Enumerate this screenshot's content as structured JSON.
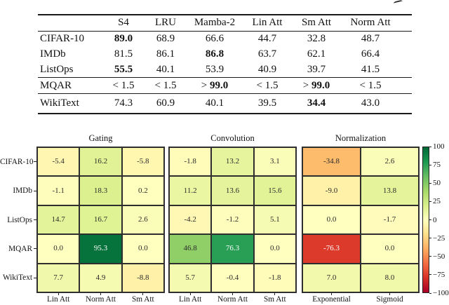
{
  "table": {
    "columns": [
      "S4",
      "LRU",
      "Mamba-2",
      "Lin Att",
      "Sm Att",
      "Norm Att"
    ],
    "sections": [
      {
        "rows": [
          {
            "label": "CIFAR-10",
            "cells": [
              {
                "t": "89.0",
                "b": true
              },
              {
                "t": "68.9"
              },
              {
                "t": "66.6"
              },
              {
                "t": "44.7"
              },
              {
                "t": "32.8"
              },
              {
                "t": "48.7"
              }
            ]
          },
          {
            "label": "IMDb",
            "cells": [
              {
                "t": "81.5"
              },
              {
                "t": "86.1"
              },
              {
                "t": "86.8",
                "b": true
              },
              {
                "t": "63.7"
              },
              {
                "t": "62.1"
              },
              {
                "t": "66.4"
              }
            ]
          },
          {
            "label": "ListOps",
            "cells": [
              {
                "t": "55.5",
                "b": true
              },
              {
                "t": "40.1"
              },
              {
                "t": "53.9"
              },
              {
                "t": "40.9"
              },
              {
                "t": "39.7"
              },
              {
                "t": "41.5"
              }
            ]
          }
        ]
      },
      {
        "rows": [
          {
            "label": "MQAR",
            "cells": [
              {
                "p": "< ",
                "t": "1.5"
              },
              {
                "p": "< ",
                "t": "1.5"
              },
              {
                "p": "> ",
                "t": "99.0",
                "b": true
              },
              {
                "p": "< ",
                "t": "1.5"
              },
              {
                "p": "> ",
                "t": "99.0",
                "b": true
              },
              {
                "p": "< ",
                "t": "1.5"
              }
            ]
          }
        ]
      },
      {
        "rows": [
          {
            "label": "WikiText",
            "cells": [
              {
                "t": "74.3"
              },
              {
                "t": "60.9"
              },
              {
                "t": "40.1"
              },
              {
                "t": "39.5"
              },
              {
                "t": "34.4",
                "b": true
              },
              {
                "t": "43.0"
              }
            ]
          }
        ]
      }
    ]
  },
  "figure": {
    "row_labels": [
      "CIFAR-10",
      "IMDb",
      "ListOps",
      "MQAR",
      "WikiText"
    ],
    "colormap_stops": [
      "#a50026",
      "#d73027",
      "#f46d43",
      "#fdae61",
      "#fee08b",
      "#ffffbf",
      "#d9ef8b",
      "#a6d96a",
      "#66bd63",
      "#1a9850",
      "#006837"
    ],
    "colorbar": {
      "tick_labels": [
        "100",
        "75",
        "50",
        "25",
        "0",
        "−25",
        "−50",
        "−75",
        "−100"
      ],
      "vmin": -100,
      "vmax": 100
    }
  },
  "chart_data": [
    {
      "type": "heatmap",
      "title": "Gating",
      "x": [
        "Lin Att",
        "Norm Att",
        "Sm Att"
      ],
      "y": [
        "CIFAR-10",
        "IMDb",
        "ListOps",
        "MQAR",
        "WikiText"
      ],
      "values": [
        [
          -5.4,
          16.2,
          -5.8
        ],
        [
          -1.1,
          18.3,
          0.2
        ],
        [
          14.7,
          16.7,
          2.6
        ],
        [
          0.0,
          95.3,
          0.0
        ],
        [
          7.7,
          4.9,
          -8.8
        ]
      ],
      "vmin": -100,
      "vmax": 100,
      "colormap": "RdYlGn"
    },
    {
      "type": "heatmap",
      "title": "Convolution",
      "x": [
        "Lin Att",
        "Norm Att",
        "Sm Att"
      ],
      "y": [
        "CIFAR-10",
        "IMDb",
        "ListOps",
        "MQAR",
        "WikiText"
      ],
      "values": [
        [
          -1.8,
          13.2,
          3.1
        ],
        [
          11.2,
          13.6,
          15.6
        ],
        [
          -4.2,
          -1.2,
          5.1
        ],
        [
          46.8,
          76.3,
          0.0
        ],
        [
          5.7,
          -0.4,
          -1.8
        ]
      ],
      "vmin": -100,
      "vmax": 100,
      "colormap": "RdYlGn"
    },
    {
      "type": "heatmap",
      "title": "Normalization",
      "x": [
        "Exponential",
        "Sigmoid"
      ],
      "y": [
        "CIFAR-10",
        "IMDb",
        "ListOps",
        "MQAR",
        "WikiText"
      ],
      "values": [
        [
          -34.8,
          2.6
        ],
        [
          -9.0,
          13.8
        ],
        [
          0.0,
          -1.7
        ],
        [
          -76.3,
          0.0
        ],
        [
          7.0,
          8.0
        ]
      ],
      "vmin": -100,
      "vmax": 100,
      "colormap": "RdYlGn"
    }
  ]
}
